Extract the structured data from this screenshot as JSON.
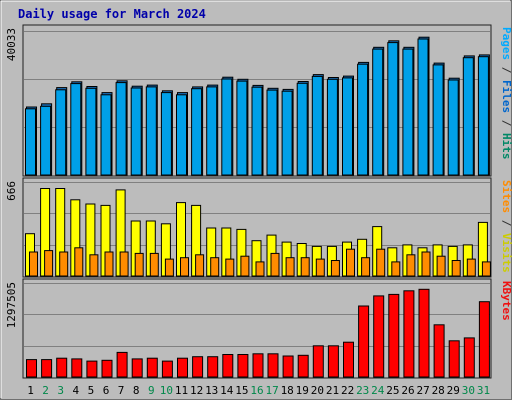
{
  "chart_data": {
    "type": "bar",
    "title": "Daily usage for March 2024",
    "categories": [
      "1",
      "2",
      "3",
      "4",
      "5",
      "6",
      "7",
      "8",
      "9",
      "10",
      "11",
      "12",
      "13",
      "14",
      "15",
      "16",
      "17",
      "18",
      "19",
      "20",
      "21",
      "22",
      "23",
      "24",
      "25",
      "26",
      "27",
      "28",
      "29",
      "30",
      "31"
    ],
    "weekend_days": [
      2,
      3,
      9,
      10,
      16,
      17,
      23,
      24,
      30,
      31
    ],
    "panels": [
      {
        "id": "top",
        "max_label": "40033",
        "ylim": [
          0,
          40033
        ],
        "side_legend": [
          {
            "text": "Pages",
            "color": "#00aaff"
          },
          {
            "text": " / ",
            "color": "#333333"
          },
          {
            "text": "Files",
            "color": "#0066cc"
          },
          {
            "text": " / ",
            "color": "#333333"
          },
          {
            "text": "Hits",
            "color": "#008866"
          }
        ],
        "series": [
          {
            "name": "Pages",
            "color": "#00a0e8",
            "values": [
              18400,
              19100,
              23700,
              25400,
              24100,
              22300,
              25700,
              24200,
              24500,
              22900,
              22300,
              24000,
              24500,
              26700,
              26100,
              24400,
              23600,
              23300,
              25500,
              27400,
              26600,
              27000,
              30800,
              35000,
              36800,
              35000,
              37800,
              30600,
              26400,
              32600,
              32900
            ]
          },
          {
            "name": "Hits",
            "color": "#1a6fb8",
            "values": [
              18900,
              19800,
              24300,
              25900,
              24600,
              22900,
              26200,
              24700,
              25000,
              23400,
              22900,
              24500,
              25000,
              27200,
              26600,
              24900,
              24100,
              23800,
              26000,
              27900,
              27100,
              27500,
              31300,
              35500,
              37300,
              35500,
              38300,
              31100,
              26900,
              33100,
              33400
            ]
          }
        ]
      },
      {
        "id": "middle",
        "max_label": "666",
        "ylim": [
          0,
          666
        ],
        "side_legend": [
          {
            "text": "Sites",
            "color": "#ff8c00"
          },
          {
            "text": " / ",
            "color": "#333333"
          },
          {
            "text": "Visits",
            "color": "#cccc00"
          }
        ],
        "series": [
          {
            "name": "Visits",
            "color": "#ffff00",
            "values": [
              300,
              620,
              620,
              540,
              510,
              500,
              610,
              390,
              390,
              370,
              520,
              500,
              340,
              340,
              330,
              250,
              290,
              240,
              230,
              210,
              210,
              240,
              260,
              350,
              200,
              220,
              200,
              220,
              210,
              220,
              380
            ]
          },
          {
            "name": "Sites",
            "color": "#ff8c00",
            "values": [
              170,
              180,
              170,
              200,
              150,
              170,
              170,
              160,
              160,
              120,
              130,
              150,
              130,
              120,
              140,
              100,
              160,
              130,
              130,
              120,
              110,
              190,
              130,
              190,
              100,
              150,
              170,
              140,
              110,
              120,
              100
            ]
          }
        ]
      },
      {
        "id": "bottom",
        "max_label": "1297505",
        "ylim": [
          0,
          1297505
        ],
        "side_legend": [
          {
            "text": "KBytes",
            "color": "#ee1111"
          }
        ],
        "series": [
          {
            "name": "KBytes",
            "color": "#ff0000",
            "values": [
              240000,
              240000,
              260000,
              250000,
              220000,
              230000,
              340000,
              250000,
              260000,
              220000,
              260000,
              280000,
              280000,
              310000,
              310000,
              320000,
              320000,
              290000,
              300000,
              430000,
              430000,
              480000,
              980000,
              1120000,
              1140000,
              1190000,
              1210000,
              720000,
              500000,
              540000,
              1040000
            ]
          }
        ]
      }
    ]
  }
}
